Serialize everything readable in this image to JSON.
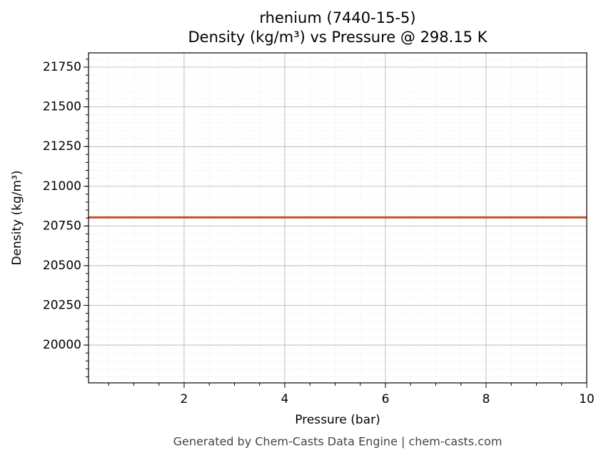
{
  "chart_data": {
    "type": "line",
    "title": "rhenium (7440-15-5)",
    "subtitle": "Density (kg/m³) vs Pressure @ 298.15 K",
    "x_label": "Pressure (bar)",
    "y_label": "Density (kg/m³)",
    "footer": "Generated by Chem-Casts Data Engine | chem-casts.com",
    "x": [
      0.1,
      10
    ],
    "series": [
      {
        "name": "rhenium",
        "color": "#c0522d",
        "values": [
          20804,
          20804
        ]
      }
    ],
    "xlim": [
      0.1,
      10
    ],
    "xticks": [
      2,
      4,
      6,
      8,
      10
    ],
    "ylim": [
      19762,
      21840
    ],
    "yticks": [
      20000,
      20250,
      20500,
      20750,
      21000,
      21250,
      21500,
      21750
    ],
    "grid": true
  }
}
